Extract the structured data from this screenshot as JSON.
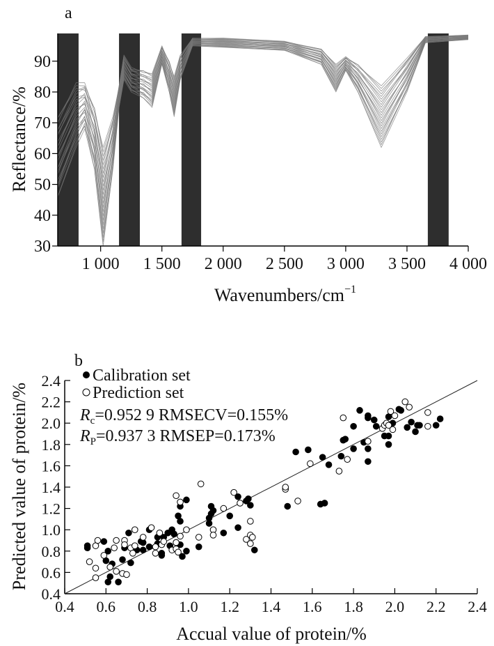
{
  "chart_data": [
    {
      "type": "line",
      "panel_label": "a",
      "xlabel": "Wavenumbers/cm",
      "xlabel_sup": "−1",
      "ylabel": "Reflectance/%",
      "xlim": [
        650,
        4000
      ],
      "ylim": [
        30,
        99
      ],
      "xticks": [
        1000,
        1500,
        2000,
        2500,
        3000,
        3500,
        4000
      ],
      "xtick_labels": [
        "1 000",
        "1 500",
        "2 000",
        "2 500",
        "3 000",
        "3 500",
        "4 000"
      ],
      "yticks": [
        30,
        40,
        50,
        60,
        70,
        80,
        90
      ],
      "ytick_labels": [
        "30",
        "40",
        "50",
        "60",
        "70",
        "80",
        "90"
      ],
      "excluded_bands": [
        [
          650,
          820
        ],
        [
          1150,
          1320
        ],
        [
          1660,
          1820
        ],
        [
          3670,
          3840
        ]
      ],
      "band_color": "#2e2e2e",
      "line_color": "#777777",
      "curve_count": 24,
      "x": [
        650,
        800,
        870,
        950,
        1020,
        1100,
        1150,
        1190,
        1250,
        1350,
        1420,
        1500,
        1560,
        1600,
        1650,
        1750,
        2000,
        2500,
        2800,
        2920,
        3000,
        3100,
        3290,
        3500,
        3650,
        4000
      ],
      "upper_envelope": [
        72,
        83,
        83,
        75,
        62,
        72,
        82,
        92,
        88,
        87,
        86,
        95,
        90,
        85,
        92,
        97.5,
        97.5,
        96.5,
        94,
        89,
        91.5,
        89,
        82,
        91,
        98,
        98.5
      ],
      "lower_envelope": [
        46,
        62,
        68,
        55,
        30,
        55,
        75,
        84,
        80,
        78,
        75,
        89,
        80,
        72,
        84,
        95,
        94.5,
        93.5,
        89,
        80,
        87,
        80,
        62,
        80,
        96,
        97
      ]
    },
    {
      "type": "scatter",
      "panel_label": "b",
      "xlabel": "Accual value of protein/%",
      "ylabel": "Predicted value of protein/%",
      "xlim": [
        0.4,
        2.4
      ],
      "ylim": [
        0.4,
        2.4
      ],
      "xticks": [
        0.4,
        0.6,
        0.8,
        1.0,
        1.2,
        1.4,
        1.6,
        1.8,
        2.0,
        2.2,
        2.4
      ],
      "xtick_labels": [
        "0.4",
        "0.6",
        "0.8",
        "1.0",
        "1.2",
        "1.4",
        "1.6",
        "1.8",
        "2.0",
        "2.2",
        "2.4"
      ],
      "yticks": [
        0.4,
        0.6,
        0.8,
        1.0,
        1.2,
        1.4,
        1.6,
        1.8,
        2.0,
        2.2,
        2.4
      ],
      "ytick_labels": [
        "0.4",
        "0.6",
        "0.8",
        "1.0",
        "1.2",
        "1.4",
        "1.6",
        "1.8",
        "2.0",
        "2.2",
        "2.4"
      ],
      "reference_line": [
        [
          0.4,
          0.4
        ],
        [
          2.4,
          2.4
        ]
      ],
      "legend": [
        "Calibration set",
        "Prediction set"
      ],
      "legend_position": "top-left",
      "stats": [
        {
          "symbol": "R",
          "sub": "c",
          "text": "=0.952 9 RMSECV=0.155%"
        },
        {
          "symbol": "R",
          "sub": "P",
          "text": "=0.937 3 RMSEP=0.173%"
        }
      ],
      "series": [
        {
          "name": "Calibration set",
          "marker": "filled-circle",
          "points": [
            [
              0.51,
              0.85
            ],
            [
              0.51,
              0.83
            ],
            [
              0.59,
              0.89
            ],
            [
              0.61,
              0.8
            ],
            [
              0.6,
              0.71
            ],
            [
              0.63,
              0.68
            ],
            [
              0.62,
              0.56
            ],
            [
              0.61,
              0.51
            ],
            [
              0.66,
              0.51
            ],
            [
              0.68,
              0.72
            ],
            [
              0.72,
              0.69
            ],
            [
              0.71,
              0.97
            ],
            [
              0.69,
              0.83
            ],
            [
              0.75,
              0.81
            ],
            [
              0.77,
              0.89
            ],
            [
              0.78,
              0.88
            ],
            [
              0.78,
              0.81
            ],
            [
              0.81,
              1.0
            ],
            [
              0.81,
              0.84
            ],
            [
              0.85,
              0.87
            ],
            [
              0.85,
              0.93
            ],
            [
              0.87,
              0.76
            ],
            [
              0.87,
              0.78
            ],
            [
              0.88,
              0.93
            ],
            [
              0.9,
              0.97
            ],
            [
              0.92,
              1.0
            ],
            [
              0.93,
              0.96
            ],
            [
              0.91,
              0.85
            ],
            [
              0.94,
              0.88
            ],
            [
              0.96,
              0.86
            ],
            [
              0.97,
              0.75
            ],
            [
              0.99,
              0.8
            ],
            [
              0.96,
              1.22
            ],
            [
              0.95,
              1.13
            ],
            [
              0.96,
              1.08
            ],
            [
              0.99,
              1.28
            ],
            [
              1.05,
              0.84
            ],
            [
              1.1,
              1.11
            ],
            [
              1.1,
              1.06
            ],
            [
              1.11,
              1.22
            ],
            [
              1.12,
              1.18
            ],
            [
              1.11,
              1.15
            ],
            [
              1.17,
              0.97
            ],
            [
              1.2,
              1.13
            ],
            [
              1.24,
              1.31
            ],
            [
              1.24,
              1.02
            ],
            [
              1.28,
              1.27
            ],
            [
              1.29,
              1.29
            ],
            [
              1.3,
              1.23
            ],
            [
              1.32,
              0.81
            ],
            [
              1.48,
              1.22
            ],
            [
              1.52,
              1.73
            ],
            [
              1.58,
              1.75
            ],
            [
              1.64,
              1.24
            ],
            [
              1.66,
              1.25
            ],
            [
              1.65,
              1.68
            ],
            [
              1.68,
              1.61
            ],
            [
              1.74,
              1.69
            ],
            [
              1.75,
              1.84
            ],
            [
              1.76,
              1.85
            ],
            [
              1.8,
              1.97
            ],
            [
              1.8,
              1.76
            ],
            [
              1.83,
              2.12
            ],
            [
              1.85,
              1.82
            ],
            [
              1.87,
              2.05
            ],
            [
              1.87,
              2.07
            ],
            [
              1.87,
              1.76
            ],
            [
              1.87,
              1.64
            ],
            [
              1.9,
              2.03
            ],
            [
              1.91,
              1.97
            ],
            [
              1.95,
              1.88
            ],
            [
              1.97,
              1.88
            ],
            [
              1.97,
              2.06
            ],
            [
              1.97,
              1.8
            ],
            [
              1.99,
              2.0
            ],
            [
              2.02,
              2.13
            ],
            [
              2.03,
              2.12
            ],
            [
              2.06,
              1.96
            ],
            [
              2.08,
              2.01
            ],
            [
              2.1,
              1.92
            ],
            [
              2.11,
              1.98
            ],
            [
              2.12,
              1.98
            ],
            [
              2.2,
              1.98
            ],
            [
              2.22,
              2.04
            ]
          ]
        },
        {
          "name": "Prediction set",
          "marker": "open-circle",
          "points": [
            [
              0.52,
              0.7
            ],
            [
              0.55,
              0.85
            ],
            [
              0.56,
              0.9
            ],
            [
              0.55,
              0.55
            ],
            [
              0.55,
              0.64
            ],
            [
              0.59,
              0.76
            ],
            [
              0.62,
              0.65
            ],
            [
              0.64,
              0.83
            ],
            [
              0.65,
              0.9
            ],
            [
              0.65,
              0.61
            ],
            [
              0.68,
              0.59
            ],
            [
              0.7,
              0.58
            ],
            [
              0.69,
              0.9
            ],
            [
              0.69,
              0.86
            ],
            [
              0.72,
              0.83
            ],
            [
              0.73,
              0.78
            ],
            [
              0.74,
              1.0
            ],
            [
              0.74,
              0.85
            ],
            [
              0.78,
              0.93
            ],
            [
              0.82,
              1.02
            ],
            [
              0.84,
              0.84
            ],
            [
              0.84,
              0.78
            ],
            [
              0.86,
              0.97
            ],
            [
              0.87,
              0.86
            ],
            [
              0.88,
              0.89
            ],
            [
              0.92,
              0.81
            ],
            [
              0.94,
              0.88
            ],
            [
              0.94,
              0.82
            ],
            [
              0.95,
              0.79
            ],
            [
              0.96,
              0.94
            ],
            [
              0.94,
              1.32
            ],
            [
              0.96,
              1.26
            ],
            [
              0.99,
              1.0
            ],
            [
              1.05,
              0.93
            ],
            [
              1.06,
              1.43
            ],
            [
              1.12,
              1.0
            ],
            [
              1.12,
              0.95
            ],
            [
              1.17,
              1.2
            ],
            [
              1.22,
              1.35
            ],
            [
              1.25,
              1.25
            ],
            [
              1.28,
              0.91
            ],
            [
              1.3,
              1.08
            ],
            [
              1.3,
              0.95
            ],
            [
              1.31,
              0.93
            ],
            [
              1.3,
              0.87
            ],
            [
              1.47,
              1.38
            ],
            [
              1.47,
              1.4
            ],
            [
              1.53,
              1.27
            ],
            [
              1.59,
              1.62
            ],
            [
              1.73,
              1.55
            ],
            [
              1.75,
              2.05
            ],
            [
              1.77,
              1.66
            ],
            [
              1.87,
              1.83
            ],
            [
              1.94,
              1.95
            ],
            [
              1.95,
              1.98
            ],
            [
              1.96,
              2.0
            ],
            [
              1.97,
              1.98
            ],
            [
              1.98,
              2.11
            ],
            [
              1.99,
              1.94
            ],
            [
              2.0,
              2.07
            ],
            [
              2.05,
              2.2
            ],
            [
              2.07,
              2.15
            ],
            [
              2.16,
              2.1
            ],
            [
              2.16,
              1.97
            ]
          ]
        }
      ]
    }
  ]
}
